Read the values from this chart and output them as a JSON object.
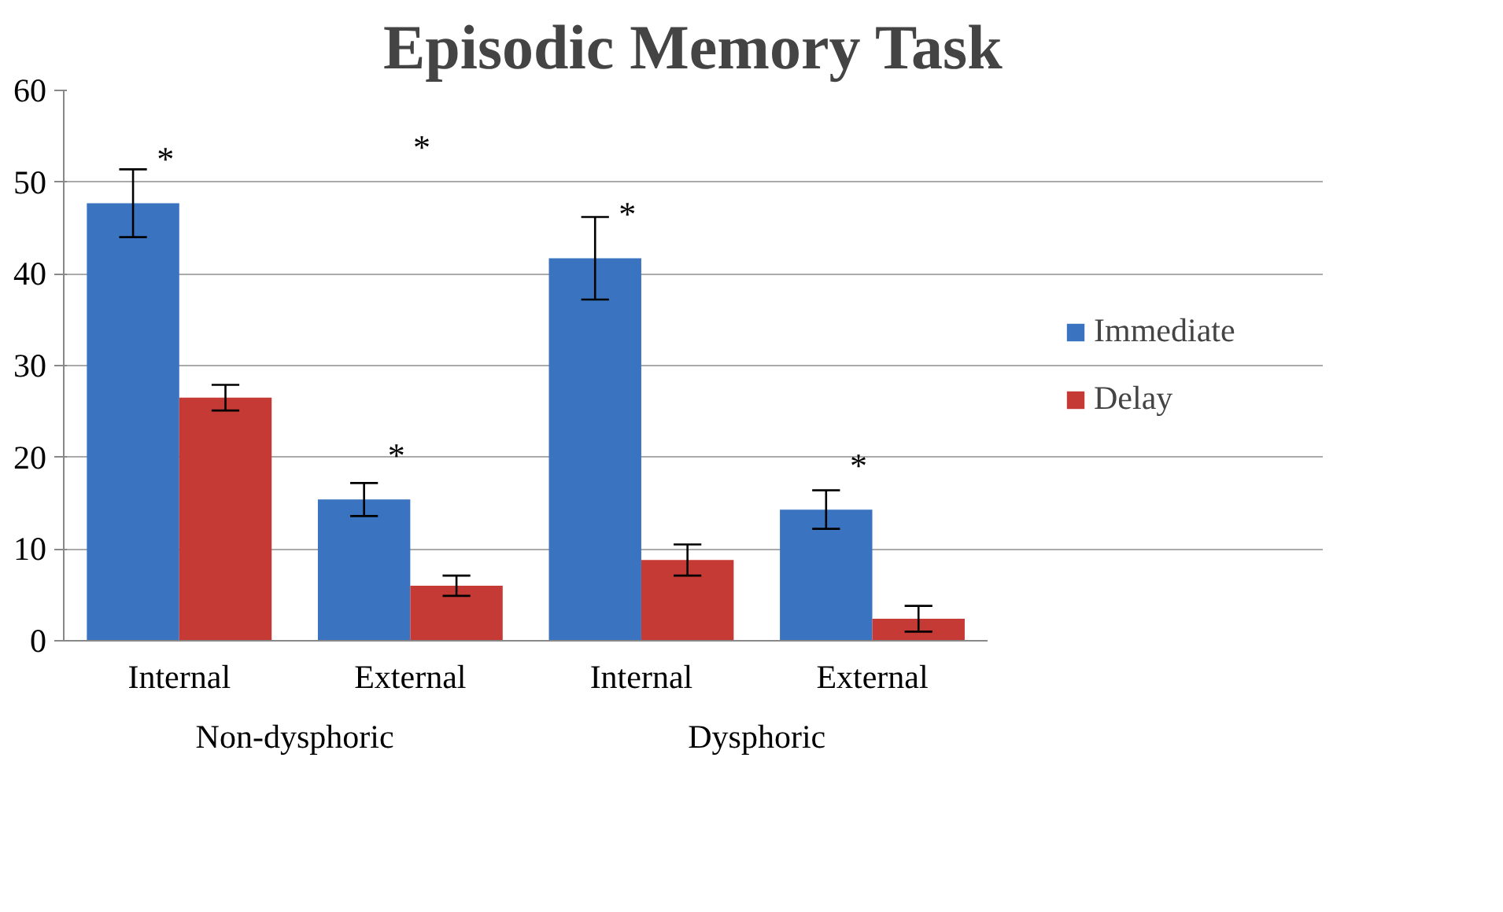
{
  "chart_data": {
    "type": "bar",
    "title": "Episodic Memory Task",
    "categories": [
      "Internal",
      "External",
      "Internal",
      "External"
    ],
    "series": [
      {
        "name": "Immediate",
        "color": "#3a74c0",
        "values": [
          47.7,
          15.4,
          41.7,
          14.3
        ],
        "errors": [
          3.7,
          1.8,
          4.5,
          2.1
        ]
      },
      {
        "name": "Delay",
        "color": "#c63a36",
        "values": [
          26.5,
          6.0,
          8.8,
          2.4
        ],
        "errors": [
          1.4,
          1.1,
          1.7,
          1.4
        ]
      }
    ],
    "ylim": [
      0,
      60
    ],
    "yticks": [
      0,
      10,
      20,
      30,
      40,
      50,
      60
    ],
    "grid": "y",
    "legend": "right",
    "annotations": [
      "Non-dysphoric",
      "Dysphoric",
      "*",
      "*",
      "*",
      "*",
      "*"
    ]
  }
}
